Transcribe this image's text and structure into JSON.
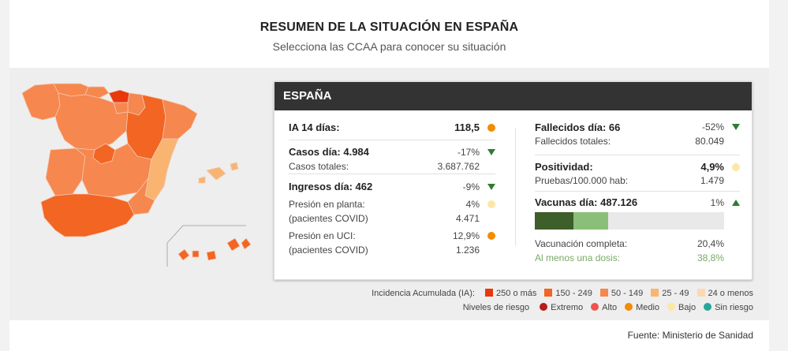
{
  "header": {
    "title": "RESUMEN DE LA SITUACIÓN EN ESPAÑA",
    "subtitle": "Selecciona las CCAA para conocer su situación"
  },
  "card": {
    "title": "ESPAÑA",
    "ia14": {
      "label": "IA 14 días:",
      "value": "118,5",
      "risk_color": "#f28c00"
    },
    "casos": {
      "label": "Casos día: 4.984",
      "change": "-17%",
      "total_label": "Casos totales:",
      "total_value": "3.687.762"
    },
    "ingresos": {
      "label": "Ingresos día: 462",
      "change": "-9%",
      "planta_label_1": "Presión en planta:",
      "planta_label_2": "(pacientes COVID)",
      "planta_pct": "4%",
      "planta_value": "4.471",
      "planta_color": "#fde7a6",
      "uci_label_1": "Presión en UCI:",
      "uci_label_2": "(pacientes COVID)",
      "uci_pct": "12,9%",
      "uci_value": "1.236",
      "uci_color": "#f28c00"
    },
    "fallecidos": {
      "label": "Fallecidos día: 66",
      "change": "-52%",
      "total_label": "Fallecidos totales:",
      "total_value": "80.049"
    },
    "positividad": {
      "label": "Positividad:",
      "value": "4,9%",
      "sub_label": "Pruebas/100.000 hab:",
      "sub_value": "1.479",
      "color": "#fde7a6"
    },
    "vacunas": {
      "label": "Vacunas día: 487.126",
      "change": "1%",
      "completa_label": "Vacunación completa:",
      "completa_value": "20,4%",
      "completa_fraction": 0.204,
      "dosis_label": "Al menos una dosis:",
      "dosis_value": "38,8%",
      "dosis_fraction": 0.388,
      "completa_color": "#3e5e2a",
      "dosis_color": "#8bbf78"
    }
  },
  "legend": {
    "ia_title": "Incidencia Acumulada (IA):",
    "ia_items": [
      {
        "label": "250 o más",
        "color": "#e8380d"
      },
      {
        "label": "150 - 249",
        "color": "#f26522"
      },
      {
        "label": "50 - 149",
        "color": "#f6874e"
      },
      {
        "label": "25 - 49",
        "color": "#f9b471"
      },
      {
        "label": "24 o menos",
        "color": "#fbd9b4"
      }
    ],
    "risk_title": "Niveles de riesgo",
    "risk_items": [
      {
        "label": "Extremo",
        "color": "#b71c1c"
      },
      {
        "label": "Alto",
        "color": "#ef5350"
      },
      {
        "label": "Medio",
        "color": "#f28c00"
      },
      {
        "label": "Bajo",
        "color": "#fde7a6"
      },
      {
        "label": "Sin riesgo",
        "color": "#26a69a"
      }
    ]
  },
  "footer": {
    "source": "Fuente: Ministerio de Sanidad"
  },
  "colors": {
    "trend_green": "#2e7d32",
    "header_dark": "#333333"
  }
}
